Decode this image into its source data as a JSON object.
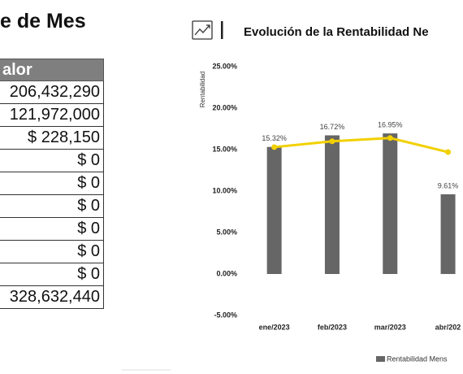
{
  "left_title": "e de Mes",
  "table": {
    "header": "alor",
    "rows": [
      "206,432,290",
      "121,972,000",
      "$ 228,150",
      "$ 0",
      "$ 0",
      "$ 0",
      "$ 0",
      "$ 0",
      "$ 0",
      "328,632,440"
    ]
  },
  "chart_data": {
    "type": "bar",
    "title": "Evolución de la Rentabilidad Ne",
    "y_label": "Rentabilidad",
    "categories": [
      "ene/2023",
      "feb/2023",
      "mar/2023",
      "abr/202"
    ],
    "series": [
      {
        "name": "Rentabilidad Mens",
        "type": "bar",
        "color": "#666666",
        "values": [
          15.32,
          16.72,
          16.95,
          9.61
        ],
        "value_labels": [
          "15.32%",
          "16.72%",
          "16.95%",
          "9.61%"
        ]
      },
      {
        "type": "line",
        "color": "#f2d000",
        "values": [
          15.3,
          16.0,
          16.4,
          14.7
        ]
      }
    ],
    "ylim": [
      -5,
      25
    ],
    "yticks": [
      {
        "value": -5,
        "label": "-5.00%"
      },
      {
        "value": 0,
        "label": "0.00%"
      },
      {
        "value": 5,
        "label": "5.00%"
      },
      {
        "value": 10,
        "label": "10.00%"
      },
      {
        "value": 15,
        "label": "15.00%"
      },
      {
        "value": 20,
        "label": "20.00%"
      },
      {
        "value": 25,
        "label": "25.00%"
      }
    ],
    "grid": false,
    "legend": "bottom"
  }
}
